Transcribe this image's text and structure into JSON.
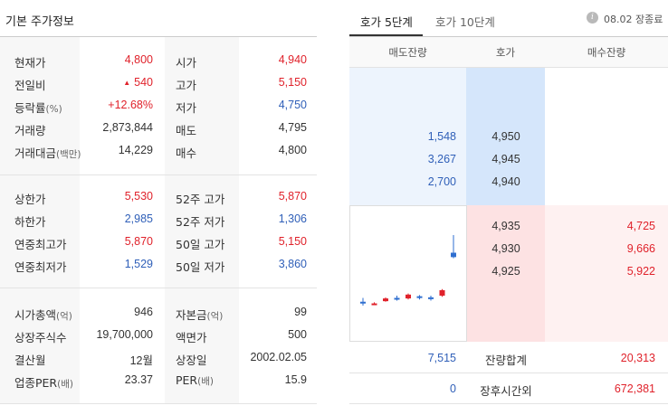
{
  "left_panel": {
    "title": "기본 주가정보",
    "section1": [
      {
        "label": "현재가",
        "value": "4,800",
        "label2": "시가",
        "value2": "4,940"
      },
      {
        "label": "전일비",
        "arrow": "▲",
        "value": "540",
        "label2": "고가",
        "value2": "5,150"
      },
      {
        "label": "등락률",
        "unit": "(%)",
        "value": "+12.68%",
        "label2": "저가",
        "value2": "4,750"
      },
      {
        "label": "거래량",
        "value": "2,873,844",
        "label2": "매도",
        "value2": "4,795"
      },
      {
        "label": "거래대금",
        "unit": "(백만)",
        "value": "14,229",
        "label2": "매수",
        "value2": "4,800"
      }
    ],
    "section2": [
      {
        "label": "상한가",
        "value": "5,530",
        "label2": "52주 고가",
        "value2": "5,870"
      },
      {
        "label": "하한가",
        "value": "2,985",
        "label2": "52주 저가",
        "value2": "1,306"
      },
      {
        "label": "연중최고가",
        "value": "5,870",
        "label2": "50일 고가",
        "value2": "5,150"
      },
      {
        "label": "연중최저가",
        "value": "1,529",
        "label2": "50일 저가",
        "value2": "3,860"
      }
    ],
    "section3": [
      {
        "label": "시가총액",
        "unit": "(억)",
        "value": "946",
        "label2": "자본금",
        "unit2": "(억)",
        "value2": "99"
      },
      {
        "label": "상장주식수",
        "value": "19,700,000",
        "label2": "액면가",
        "value2": "500"
      },
      {
        "label": "결산월",
        "value": "12월",
        "label2": "상장일",
        "value2": "2002.02.05"
      },
      {
        "label": "업종PER",
        "unit": "(배)",
        "value": "23.37",
        "label2": "PER",
        "unit2": "(배)",
        "value2": "15.9"
      }
    ]
  },
  "order_book": {
    "tabs": [
      "호가 5단계",
      "호가 10단계"
    ],
    "info_icon_glyph": "i",
    "status": "08.02 장종료",
    "headers": [
      "매도잔량",
      "호가",
      "매수잔량"
    ],
    "asks": [
      {
        "qty": "1,548",
        "price": "4,950"
      },
      {
        "qty": "3,267",
        "price": "4,945"
      },
      {
        "qty": "2,700",
        "price": "4,940"
      }
    ],
    "bids": [
      {
        "price": "4,935",
        "qty": "4,725"
      },
      {
        "price": "4,930",
        "qty": "9,666"
      },
      {
        "price": "4,925",
        "qty": "5,922"
      }
    ],
    "total": {
      "ask": "7,515",
      "label": "잔량합계",
      "bid": "20,313"
    },
    "after_hours": {
      "ask": "0",
      "label": "장후시간외",
      "bid": "672,381"
    }
  },
  "mini_chart": {
    "candles": [
      {
        "open": 3985,
        "close": 3995,
        "high": 4030,
        "low": 3960,
        "color": "#2f6fd0"
      },
      {
        "open": 3980,
        "close": 3975,
        "high": 3990,
        "low": 3965,
        "color": "#e0222b"
      },
      {
        "open": 4025,
        "close": 4000,
        "high": 4035,
        "low": 3995,
        "color": "#e0222b"
      },
      {
        "open": 4030,
        "close": 4015,
        "high": 4050,
        "low": 4005,
        "color": "#2f6fd0"
      },
      {
        "open": 4060,
        "close": 4025,
        "high": 4070,
        "low": 4015,
        "color": "#e0222b"
      },
      {
        "open": 4030,
        "close": 4045,
        "high": 4055,
        "low": 4015,
        "color": "#2f6fd0"
      },
      {
        "open": 4020,
        "close": 4035,
        "high": 4050,
        "low": 4005,
        "color": "#2f6fd0"
      },
      {
        "open": 4100,
        "close": 4050,
        "high": 4110,
        "low": 4040,
        "color": "#e0222b"
      },
      {
        "open": 4440,
        "close": 4400,
        "high": 4600,
        "low": 4390,
        "color": "#2f6fd0"
      }
    ]
  },
  "colors": {
    "up": "#e0222b",
    "down": "#2f5fb8",
    "ask_bg": "#edf4fd",
    "bid_bg": "#fef1f1"
  }
}
